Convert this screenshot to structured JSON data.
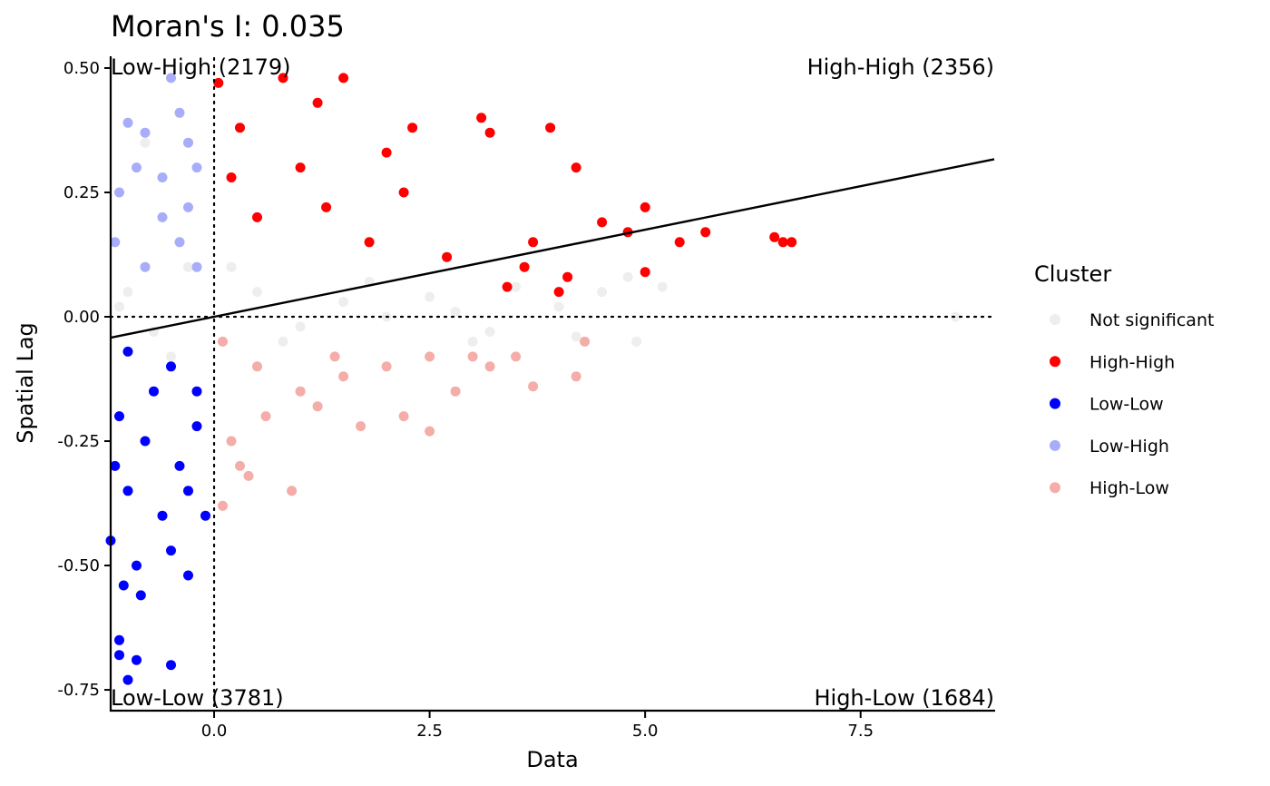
{
  "chart_data": {
    "type": "scatter",
    "title": "Moran's I: 0.035",
    "xlabel": "Data",
    "ylabel": "Spatial Lag",
    "xlim": [
      -1.2,
      9.05
    ],
    "ylim": [
      -0.79,
      0.52
    ],
    "x_ticks": [
      {
        "value": 0.0,
        "label": "0.0"
      },
      {
        "value": 2.5,
        "label": "2.5"
      },
      {
        "value": 5.0,
        "label": "5.0"
      },
      {
        "value": 7.5,
        "label": "7.5"
      }
    ],
    "y_ticks": [
      {
        "value": 0.5,
        "label": "0.50"
      },
      {
        "value": 0.25,
        "label": "0.25"
      },
      {
        "value": 0.0,
        "label": "0.00"
      },
      {
        "value": -0.25,
        "label": "-0.25"
      },
      {
        "value": -0.5,
        "label": "-0.50"
      },
      {
        "value": -0.75,
        "label": "-0.75"
      }
    ],
    "grid": false,
    "reference_lines": {
      "x": 0,
      "y": 0,
      "style": "dotted"
    },
    "regression_line": {
      "intercept": 0.0,
      "slope": 0.035
    },
    "quadrant_labels": [
      {
        "text": "Low-High (2179)",
        "position": "top-left"
      },
      {
        "text": "High-High (2356)",
        "position": "top-right"
      },
      {
        "text": "Low-Low (3781)",
        "position": "bottom-left"
      },
      {
        "text": "High-Low (1684)",
        "position": "bottom-right"
      }
    ],
    "legend": {
      "title": "Cluster",
      "placement": "right",
      "entries": [
        {
          "label": "Not significant",
          "color": "#EEEEEE"
        },
        {
          "label": "High-High",
          "color": "#FF0000"
        },
        {
          "label": "Low-Low",
          "color": "#0000FF"
        },
        {
          "label": "Low-High",
          "color": "#A7ADF9"
        },
        {
          "label": "High-Low",
          "color": "#F4ADA8"
        }
      ]
    },
    "series": [
      {
        "name": "Not significant",
        "color": "#EEEEEE",
        "points": [
          [
            -0.8,
            0.35
          ],
          [
            -0.3,
            0.1
          ],
          [
            0.5,
            0.05
          ],
          [
            1.0,
            -0.02
          ],
          [
            1.5,
            0.03
          ],
          [
            2.0,
            0.0
          ],
          [
            2.5,
            0.04
          ],
          [
            3.0,
            -0.05
          ],
          [
            3.5,
            0.06
          ],
          [
            4.0,
            0.02
          ],
          [
            4.5,
            0.05
          ],
          [
            4.8,
            0.08
          ],
          [
            5.2,
            0.06
          ],
          [
            8.6,
            0.0
          ],
          [
            -1.0,
            0.05
          ],
          [
            -0.5,
            -0.08
          ],
          [
            0.2,
            0.1
          ],
          [
            0.8,
            -0.05
          ],
          [
            3.2,
            -0.03
          ],
          [
            4.2,
            -0.04
          ],
          [
            4.9,
            -0.05
          ],
          [
            -1.1,
            0.02
          ],
          [
            -0.7,
            -0.03
          ],
          [
            1.8,
            0.07
          ],
          [
            2.8,
            0.01
          ]
        ]
      },
      {
        "name": "High-High",
        "color": "#FF0000",
        "points": [
          [
            0.05,
            0.47
          ],
          [
            0.3,
            0.38
          ],
          [
            0.8,
            0.48
          ],
          [
            1.5,
            0.48
          ],
          [
            1.2,
            0.43
          ],
          [
            2.3,
            0.38
          ],
          [
            3.1,
            0.4
          ],
          [
            3.2,
            0.37
          ],
          [
            3.9,
            0.38
          ],
          [
            2.0,
            0.33
          ],
          [
            4.2,
            0.3
          ],
          [
            4.5,
            0.19
          ],
          [
            5.0,
            0.22
          ],
          [
            4.8,
            0.17
          ],
          [
            5.4,
            0.15
          ],
          [
            5.7,
            0.17
          ],
          [
            6.5,
            0.16
          ],
          [
            6.6,
            0.15
          ],
          [
            6.7,
            0.15
          ],
          [
            5.0,
            0.09
          ],
          [
            4.1,
            0.08
          ],
          [
            3.6,
            0.1
          ],
          [
            1.0,
            0.3
          ],
          [
            0.5,
            0.2
          ],
          [
            1.8,
            0.15
          ],
          [
            2.7,
            0.12
          ],
          [
            3.4,
            0.06
          ],
          [
            0.2,
            0.28
          ],
          [
            1.3,
            0.22
          ],
          [
            2.2,
            0.25
          ],
          [
            4.0,
            0.05
          ],
          [
            3.7,
            0.15
          ]
        ]
      },
      {
        "name": "Low-Low",
        "color": "#0000FF",
        "points": [
          [
            -1.0,
            -0.07
          ],
          [
            -0.5,
            -0.1
          ],
          [
            -0.2,
            -0.15
          ],
          [
            -1.1,
            -0.2
          ],
          [
            -0.8,
            -0.25
          ],
          [
            -0.4,
            -0.3
          ],
          [
            -1.0,
            -0.35
          ],
          [
            -0.6,
            -0.4
          ],
          [
            -1.2,
            -0.45
          ],
          [
            -0.9,
            -0.5
          ],
          [
            -0.5,
            -0.47
          ],
          [
            -0.3,
            -0.52
          ],
          [
            -1.05,
            -0.54
          ],
          [
            -0.85,
            -0.56
          ],
          [
            -1.1,
            -0.65
          ],
          [
            -1.1,
            -0.68
          ],
          [
            -0.9,
            -0.69
          ],
          [
            -0.5,
            -0.7
          ],
          [
            -1.0,
            -0.73
          ],
          [
            -0.1,
            -0.4
          ],
          [
            -0.3,
            -0.35
          ],
          [
            -0.7,
            -0.15
          ],
          [
            -1.15,
            -0.3
          ],
          [
            -0.2,
            -0.22
          ]
        ]
      },
      {
        "name": "Low-High",
        "color": "#A7ADF9",
        "points": [
          [
            -0.5,
            0.48
          ],
          [
            -0.4,
            0.41
          ],
          [
            -0.3,
            0.35
          ],
          [
            -0.8,
            0.37
          ],
          [
            -1.0,
            0.39
          ],
          [
            -0.2,
            0.3
          ],
          [
            -0.9,
            0.3
          ],
          [
            -0.6,
            0.2
          ],
          [
            -1.1,
            0.25
          ],
          [
            -0.4,
            0.15
          ],
          [
            -0.8,
            0.1
          ],
          [
            -0.2,
            0.1
          ],
          [
            -1.15,
            0.15
          ],
          [
            -0.6,
            0.28
          ],
          [
            -0.3,
            0.22
          ]
        ]
      },
      {
        "name": "High-Low",
        "color": "#F4ADA8",
        "points": [
          [
            0.1,
            -0.05
          ],
          [
            0.5,
            -0.1
          ],
          [
            1.0,
            -0.15
          ],
          [
            1.5,
            -0.12
          ],
          [
            2.0,
            -0.1
          ],
          [
            2.5,
            -0.08
          ],
          [
            3.0,
            -0.08
          ],
          [
            3.5,
            -0.08
          ],
          [
            3.7,
            -0.14
          ],
          [
            4.2,
            -0.12
          ],
          [
            0.3,
            -0.3
          ],
          [
            0.9,
            -0.35
          ],
          [
            0.1,
            -0.38
          ],
          [
            0.4,
            -0.32
          ],
          [
            1.2,
            -0.18
          ],
          [
            1.7,
            -0.22
          ],
          [
            2.2,
            -0.2
          ],
          [
            2.5,
            -0.23
          ],
          [
            3.2,
            -0.1
          ],
          [
            0.6,
            -0.2
          ],
          [
            1.4,
            -0.08
          ],
          [
            2.8,
            -0.15
          ],
          [
            0.2,
            -0.25
          ],
          [
            4.3,
            -0.05
          ]
        ]
      }
    ]
  }
}
